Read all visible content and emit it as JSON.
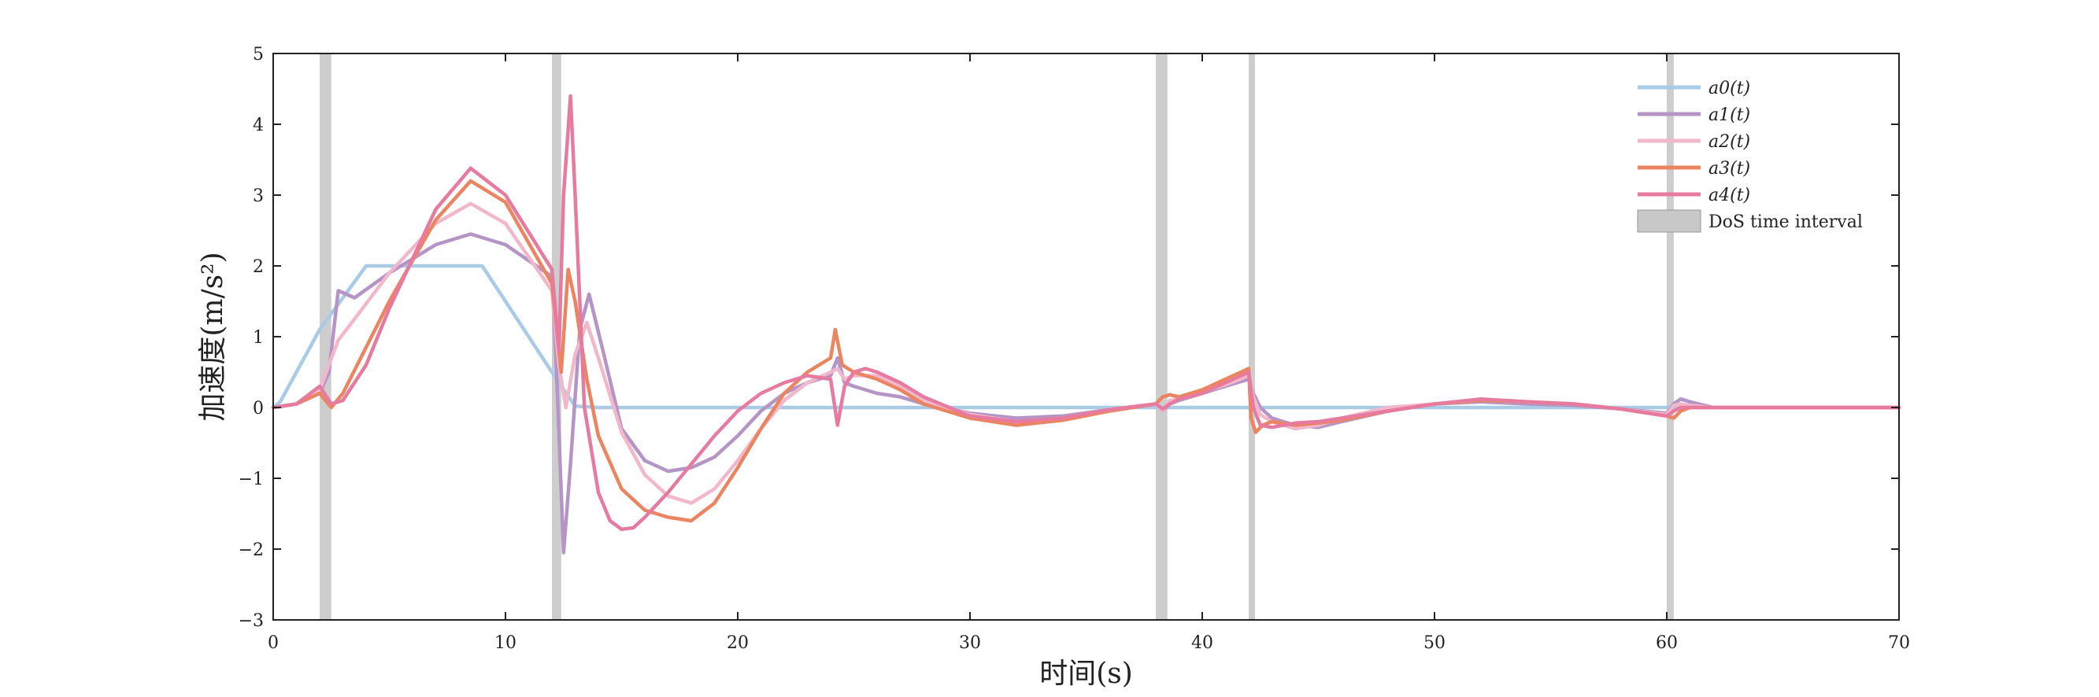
{
  "chart_data": {
    "type": "line",
    "xlabel": "时间(s)",
    "ylabel": "加速度(m/s²)",
    "xlim": [
      0,
      70
    ],
    "ylim": [
      -3,
      5
    ],
    "xticks": [
      0,
      10,
      20,
      30,
      40,
      50,
      60,
      70
    ],
    "yticks": [
      -3,
      -2,
      -1,
      0,
      1,
      2,
      3,
      4,
      5
    ],
    "grid": false,
    "legend_position": "top-right",
    "dos_label": "DoS time interval",
    "dos_color": "#c8c8c8",
    "dos_intervals": [
      [
        2.0,
        2.5
      ],
      [
        12.0,
        12.4
      ],
      [
        38.0,
        38.5
      ],
      [
        42.0,
        42.2
      ],
      [
        60.0,
        60.3
      ]
    ],
    "series": [
      {
        "name": "a0(t)",
        "color": "#a9cbe6",
        "x": [
          0,
          0.3,
          2,
          4,
          9,
          12.2,
          13.0,
          14,
          30,
          40,
          50,
          60,
          70
        ],
        "y": [
          0,
          0.08,
          1.1,
          2.0,
          2.0,
          0.4,
          0.02,
          0,
          0,
          0,
          0,
          0,
          0
        ]
      },
      {
        "name": "a1(t)",
        "color": "#b595c6",
        "x": [
          0,
          1,
          2.0,
          2.4,
          2.8,
          3.5,
          5,
          7,
          8.5,
          10,
          12.0,
          12.2,
          12.5,
          12.8,
          13.2,
          13.6,
          14.2,
          15,
          16,
          17,
          18,
          19,
          20,
          21,
          22,
          23,
          24,
          24.3,
          24.6,
          25,
          26,
          27,
          28,
          30,
          32,
          34,
          36,
          38,
          38.3,
          38.6,
          39,
          40,
          41,
          42,
          42.2,
          42.5,
          43,
          44,
          45,
          46,
          48,
          50,
          52,
          54,
          56,
          58,
          60,
          60.3,
          60.6,
          61,
          62,
          65,
          70
        ],
        "y": [
          0,
          0.05,
          0.2,
          0.5,
          1.65,
          1.55,
          1.9,
          2.3,
          2.45,
          2.3,
          1.85,
          0.5,
          -2.05,
          -0.8,
          1.1,
          1.6,
          0.8,
          -0.3,
          -0.75,
          -0.9,
          -0.85,
          -0.7,
          -0.4,
          -0.05,
          0.2,
          0.35,
          0.45,
          0.7,
          0.35,
          0.3,
          0.2,
          0.15,
          0.05,
          -0.08,
          -0.15,
          -0.12,
          -0.03,
          0.05,
          -0.05,
          0.05,
          0.1,
          0.2,
          0.3,
          0.4,
          0.2,
          0.0,
          -0.15,
          -0.25,
          -0.28,
          -0.2,
          -0.05,
          0.05,
          0.08,
          0.05,
          0.03,
          -0.02,
          -0.08,
          0.05,
          0.12,
          0.08,
          0.0,
          0.0,
          0.0
        ]
      },
      {
        "name": "a2(t)",
        "color": "#f2b7cb",
        "x": [
          0,
          1,
          2.0,
          2.4,
          2.8,
          3.5,
          5,
          7,
          8.5,
          10,
          12.0,
          12.3,
          12.6,
          13.0,
          13.5,
          14,
          15,
          16,
          17,
          18,
          19,
          20,
          21,
          22,
          23,
          24,
          24.3,
          24.6,
          25,
          26,
          27,
          28,
          30,
          32,
          34,
          36,
          38,
          38.3,
          38.6,
          39,
          40,
          41,
          42,
          42.2,
          42.5,
          43,
          44,
          45,
          46,
          48,
          50,
          52,
          54,
          56,
          58,
          60,
          60.3,
          60.6,
          61,
          62,
          65,
          70
        ],
        "y": [
          0,
          0.05,
          0.25,
          0.6,
          0.95,
          1.25,
          1.9,
          2.6,
          2.88,
          2.6,
          1.65,
          0.6,
          0.0,
          0.75,
          1.2,
          0.7,
          -0.35,
          -0.95,
          -1.25,
          -1.35,
          -1.15,
          -0.75,
          -0.3,
          0.1,
          0.35,
          0.5,
          0.55,
          0.4,
          0.45,
          0.45,
          0.3,
          0.1,
          -0.1,
          -0.2,
          -0.15,
          -0.03,
          0.05,
          -0.05,
          0.1,
          0.12,
          0.22,
          0.32,
          0.45,
          0.15,
          -0.1,
          -0.2,
          -0.3,
          -0.25,
          -0.15,
          0.0,
          0.05,
          0.1,
          0.08,
          0.05,
          -0.02,
          -0.1,
          0.03,
          0.05,
          0.03,
          0.0,
          0.0,
          0.0
        ]
      },
      {
        "name": "a3(t)",
        "color": "#eb8561",
        "x": [
          0,
          1,
          2.0,
          2.5,
          3.0,
          4,
          5,
          7,
          8.5,
          10,
          12.0,
          12.4,
          12.7,
          13.0,
          13.5,
          14,
          15,
          16,
          17,
          18,
          19,
          20,
          21,
          22,
          23,
          24,
          24.2,
          24.5,
          25,
          26,
          27,
          28,
          30,
          32,
          34,
          36,
          38,
          38.3,
          38.6,
          39,
          40,
          41,
          42,
          42.1,
          42.3,
          42.6,
          43,
          44,
          45,
          46,
          48,
          50,
          52,
          54,
          56,
          58,
          60,
          60.3,
          60.6,
          61,
          62,
          65,
          70
        ],
        "y": [
          0,
          0.05,
          0.2,
          0.0,
          0.2,
          0.85,
          1.5,
          2.65,
          3.2,
          2.9,
          1.75,
          0.5,
          1.95,
          1.5,
          0.4,
          -0.4,
          -1.15,
          -1.45,
          -1.55,
          -1.6,
          -1.35,
          -0.85,
          -0.3,
          0.2,
          0.5,
          0.7,
          1.1,
          0.6,
          0.5,
          0.4,
          0.25,
          0.05,
          -0.15,
          -0.25,
          -0.18,
          -0.05,
          0.05,
          0.15,
          0.18,
          0.15,
          0.25,
          0.4,
          0.55,
          -0.15,
          -0.35,
          -0.25,
          -0.2,
          -0.25,
          -0.22,
          -0.18,
          -0.05,
          0.05,
          0.1,
          0.08,
          0.05,
          -0.02,
          -0.12,
          -0.15,
          -0.05,
          0.0,
          0.0,
          0.0,
          0.0
        ]
      },
      {
        "name": "a4(t)",
        "color": "#e77b9f",
        "x": [
          0,
          1,
          2.0,
          2.5,
          3.0,
          4,
          5,
          7,
          8.5,
          10,
          12.0,
          12.3,
          12.5,
          12.8,
          13.0,
          13.4,
          14,
          14.5,
          15,
          15.5,
          16,
          17,
          18,
          19,
          20,
          21,
          22,
          23,
          24,
          24.3,
          24.6,
          25,
          25.5,
          26,
          27,
          28,
          30,
          32,
          34,
          36,
          38,
          38.3,
          38.6,
          39,
          40,
          41,
          42,
          42.2,
          42.5,
          43,
          44,
          45,
          46,
          48,
          50,
          52,
          54,
          56,
          58,
          60,
          60.3,
          60.6,
          61,
          62,
          65,
          70
        ],
        "y": [
          0,
          0.05,
          0.3,
          0.05,
          0.1,
          0.6,
          1.4,
          2.8,
          3.38,
          3.0,
          1.95,
          0.8,
          3.0,
          4.4,
          3.0,
          0.0,
          -1.2,
          -1.6,
          -1.72,
          -1.7,
          -1.55,
          -1.2,
          -0.8,
          -0.4,
          -0.05,
          0.2,
          0.35,
          0.45,
          0.4,
          -0.25,
          0.3,
          0.5,
          0.55,
          0.5,
          0.35,
          0.15,
          -0.12,
          -0.2,
          -0.15,
          -0.03,
          0.05,
          -0.02,
          0.05,
          0.12,
          0.2,
          0.35,
          0.5,
          0.0,
          -0.25,
          -0.28,
          -0.22,
          -0.2,
          -0.15,
          -0.05,
          0.05,
          0.12,
          0.08,
          0.05,
          -0.02,
          -0.12,
          -0.05,
          0.0,
          0.0,
          0.0,
          0.0,
          0.0
        ]
      }
    ]
  }
}
